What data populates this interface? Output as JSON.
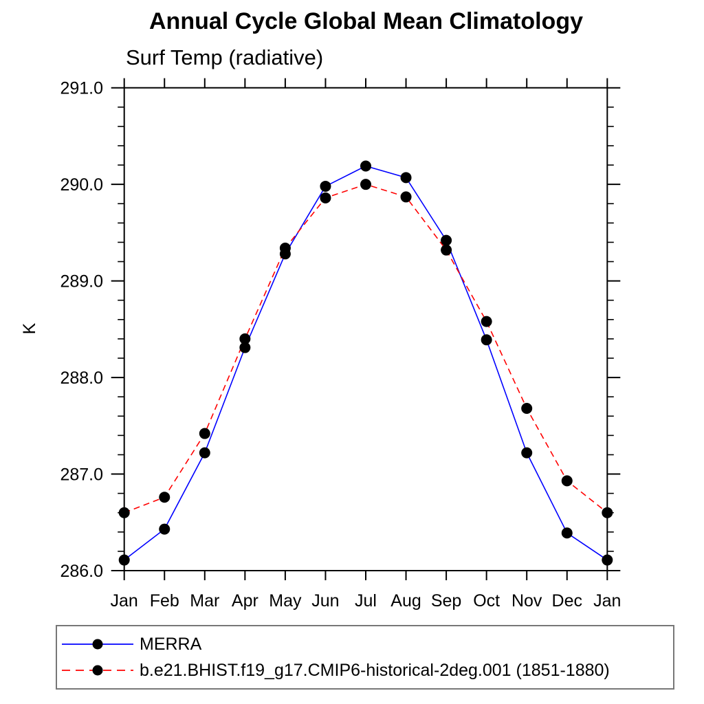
{
  "chart_data": {
    "type": "line",
    "title": "Annual Cycle Global Mean Climatology",
    "subtitle": "Surf Temp (radiative)",
    "ylabel": "K",
    "xlabel": "",
    "ylim": [
      286.0,
      291.0
    ],
    "ytick_labels": [
      "286.0",
      "287.0",
      "288.0",
      "289.0",
      "290.0",
      "291.0"
    ],
    "ytick_values": [
      286.0,
      287.0,
      288.0,
      289.0,
      290.0,
      291.0
    ],
    "ytick_minor_step": 0.2,
    "x_categories": [
      "Jan",
      "Feb",
      "Mar",
      "Apr",
      "May",
      "Jun",
      "Jul",
      "Aug",
      "Sep",
      "Oct",
      "Nov",
      "Dec",
      "Jan"
    ],
    "grid": "off",
    "legend_position": "bottom",
    "series": [
      {
        "name": "MERRA",
        "color": "#0000ff",
        "line_style": "solid",
        "marker": "filled-circle",
        "marker_color": "#000000",
        "values": [
          286.11,
          286.43,
          287.22,
          288.31,
          289.28,
          289.98,
          290.19,
          290.07,
          289.42,
          288.39,
          287.22,
          286.39,
          286.11
        ]
      },
      {
        "name": "b.e21.BHIST.f19_g17.CMIP6-historical-2deg.001 (1851-1880)",
        "color": "#ff0000",
        "line_style": "dashed",
        "marker": "filled-circle",
        "marker_color": "#000000",
        "values": [
          286.6,
          286.76,
          287.42,
          288.4,
          289.34,
          289.86,
          290.0,
          289.87,
          289.32,
          288.58,
          287.68,
          286.93,
          286.6
        ]
      }
    ]
  }
}
